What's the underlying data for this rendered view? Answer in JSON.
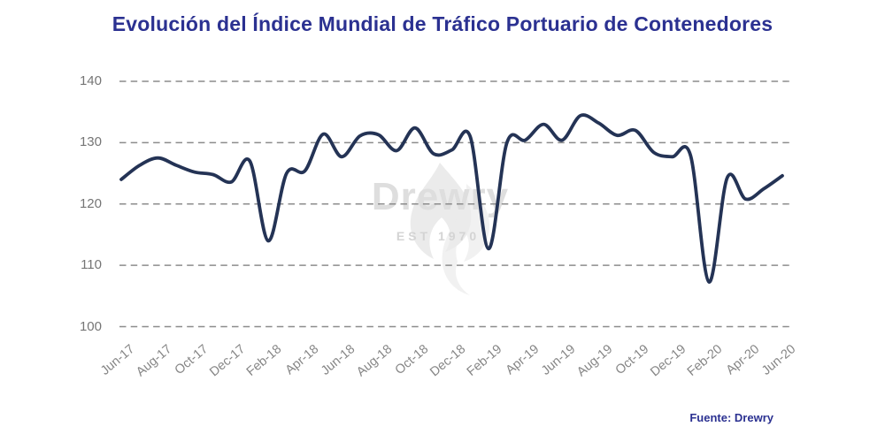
{
  "title": "Evolución del Índice Mundial de Tráfico Portuario de Contenedores",
  "source": "Fuente: Drewry",
  "watermark": {
    "name": "Drewry",
    "est": "EST 1970"
  },
  "colors": {
    "title": "#2b3191",
    "line": "#243355",
    "grid": "#8c8c8c",
    "y_tick_text": "#757575",
    "x_tick_text": "#868686",
    "source_text": "#2b3191",
    "watermark_text": "#dedede"
  },
  "chart_data": {
    "type": "line",
    "title": "Evolución del Índice Mundial de Tráfico Portuario de Contenedores",
    "xlabel": "",
    "ylabel": "",
    "ylim": [
      100,
      140
    ],
    "y_ticks": [
      100,
      110,
      120,
      130,
      140
    ],
    "grid": "horizontal-dashed",
    "legend": "none",
    "x": [
      "Jun-17",
      "Jul-17",
      "Aug-17",
      "Sep-17",
      "Oct-17",
      "Nov-17",
      "Dec-17",
      "Jan-18",
      "Feb-18",
      "Mar-18",
      "Apr-18",
      "May-18",
      "Jun-18",
      "Jul-18",
      "Aug-18",
      "Sep-18",
      "Oct-18",
      "Nov-18",
      "Dec-18",
      "Jan-19",
      "Feb-19",
      "Mar-19",
      "Apr-19",
      "May-19",
      "Jun-19",
      "Jul-19",
      "Aug-19",
      "Sep-19",
      "Oct-19",
      "Nov-19",
      "Dec-19",
      "Jan-20",
      "Feb-20",
      "Mar-20",
      "Apr-20",
      "May-20",
      "Jun-20"
    ],
    "x_tick_labels": [
      "Jun-17",
      "Aug-17",
      "Oct-17",
      "Dec-17",
      "Feb-18",
      "Apr-18",
      "Jun-18",
      "Aug-18",
      "Oct-18",
      "Dec-18",
      "Feb-19",
      "Apr-19",
      "Jun-19",
      "Aug-19",
      "Oct-19",
      "Dec-19",
      "Feb-20",
      "Apr-20",
      "Jun-20"
    ],
    "values": [
      124.0,
      126.3,
      127.5,
      126.3,
      125.2,
      124.8,
      123.6,
      127.0,
      114.0,
      125.0,
      125.4,
      131.4,
      127.7,
      131.1,
      131.3,
      128.7,
      132.4,
      128.2,
      128.8,
      131.0,
      112.7,
      130.0,
      130.4,
      133.0,
      130.4,
      134.4,
      133.2,
      131.2,
      132.0,
      128.4,
      127.7,
      127.9,
      107.3,
      124.3,
      120.8,
      122.5,
      124.6
    ]
  }
}
